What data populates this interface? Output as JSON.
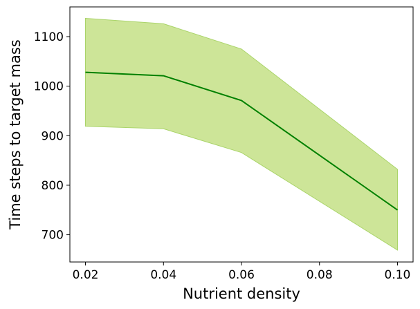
{
  "chart_data": {
    "type": "line",
    "title": "",
    "xlabel": "Nutrient density",
    "ylabel": "Time steps to target mass",
    "xlim": [
      0.016,
      0.104
    ],
    "ylim": [
      645,
      1160
    ],
    "x_ticks": [
      0.02,
      0.04,
      0.06,
      0.08,
      0.1
    ],
    "x_tick_labels": [
      "0.02",
      "0.04",
      "0.06",
      "0.08",
      "0.10"
    ],
    "y_ticks": [
      700,
      800,
      900,
      1000,
      1100
    ],
    "y_tick_labels": [
      "700",
      "800",
      "900",
      "1000",
      "1100"
    ],
    "grid": false,
    "series": [
      {
        "x": [
          0.02,
          0.04,
          0.06,
          0.1
        ],
        "values": [
          1028,
          1021,
          971,
          750
        ],
        "lower": [
          919,
          914,
          866,
          669
        ],
        "upper": [
          1137,
          1126,
          1075,
          832
        ],
        "line_color": "#008000",
        "band_color": "#cde598",
        "band_edge_color": "#aad46a"
      }
    ]
  }
}
